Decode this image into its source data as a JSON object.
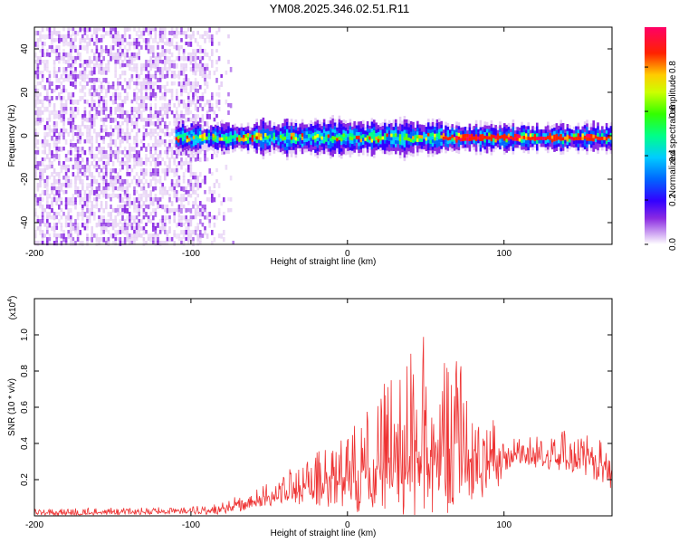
{
  "title": "YM08.2025.346.02.51.R11",
  "chart_data": [
    {
      "type": "heatmap",
      "name": "spectrogram",
      "xlabel": "Height of straight line (km)",
      "ylabel": "Frequency (Hz)",
      "xlim": [
        -200,
        169
      ],
      "ylim": [
        -50,
        50
      ],
      "xticks": [
        -200,
        -100,
        0,
        100
      ],
      "xtick_labels": [
        "-200",
        "-100",
        "0",
        "100"
      ],
      "yticks": [
        -40,
        -20,
        0,
        20,
        40
      ],
      "ytick_labels": [
        "-40",
        "-20",
        "0",
        "20",
        "40"
      ],
      "colorbar": {
        "label": "Normalized spectral amplitude",
        "range": [
          0,
          0.98
        ],
        "ticks": [
          0.0,
          0.2,
          0.4,
          0.6,
          0.8
        ],
        "tick_labels": [
          "0.0",
          "0.2",
          "0.4",
          "0.6",
          "0.8"
        ],
        "colormap": [
          "#ffffff",
          "#e6d0f5",
          "#8a2be2",
          "#3300ff",
          "#0066ff",
          "#00ccff",
          "#00ff88",
          "#66ff00",
          "#ffff00",
          "#ffaa00",
          "#ff2200",
          "#ff0066"
        ]
      },
      "features": {
        "noise_region_x": [
          -200,
          -72
        ],
        "band_center_hz": 0,
        "band_start_x": -110,
        "peak_line_start_x": 60
      }
    },
    {
      "type": "line",
      "name": "snr",
      "xlabel": "Height of straight line (km)",
      "ylabel": "SNR (10 * v/v)",
      "exponent_label": "(x10",
      "exponent_sup": "4",
      "exponent_close": ")",
      "xlim": [
        -200,
        169
      ],
      "ylim": [
        0,
        1.2
      ],
      "xticks": [
        -200,
        -100,
        0,
        100
      ],
      "xtick_labels": [
        "-200",
        "-100",
        "0",
        "100"
      ],
      "yticks": [
        0.2,
        0.4,
        0.6,
        0.8,
        1.0
      ],
      "ytick_labels": [
        "0.2",
        "0.4",
        "0.6",
        "0.8",
        "1.0"
      ],
      "color": "#ee3333",
      "envelope": {
        "x": [
          -200,
          -150,
          -100,
          -85,
          -70,
          -55,
          -40,
          -20,
          -5,
          10,
          20,
          30,
          40,
          55,
          65,
          75,
          85,
          92,
          97,
          100,
          110,
          125,
          140,
          155,
          169
        ],
        "base": [
          0.015,
          0.02,
          0.025,
          0.03,
          0.06,
          0.1,
          0.13,
          0.16,
          0.2,
          0.24,
          0.28,
          0.33,
          0.35,
          0.36,
          0.35,
          0.32,
          0.3,
          0.29,
          0.3,
          0.33,
          0.35,
          0.34,
          0.33,
          0.3,
          0.25
        ],
        "peak": [
          0.04,
          0.045,
          0.05,
          0.07,
          0.12,
          0.18,
          0.24,
          0.35,
          0.45,
          0.62,
          0.72,
          0.88,
          0.98,
          1.02,
          0.95,
          0.8,
          0.65,
          0.58,
          0.52,
          0.47,
          0.45,
          0.48,
          0.47,
          0.45,
          0.42
        ]
      }
    }
  ]
}
